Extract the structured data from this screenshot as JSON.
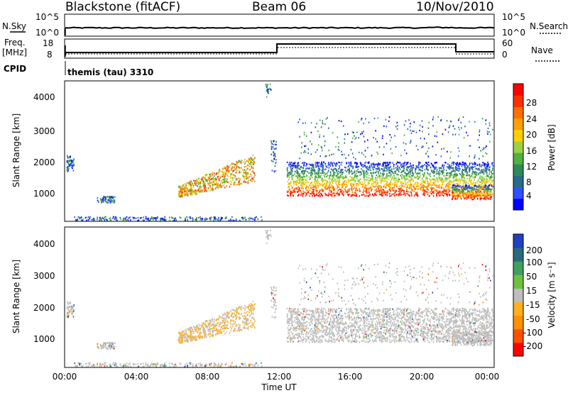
{
  "header": {
    "station": "Blackstone (fitACF)",
    "beam": "Beam 06",
    "date": "10/Nov/2010"
  },
  "status_panels": {
    "nsky_label": "N.Sky",
    "nsearch_label": "N.Search",
    "nsky_ticks": [
      "10^5",
      "10^0"
    ],
    "nsearch_ticks": [
      "10^5",
      "10^0"
    ],
    "freq_label": "Freq.",
    "freq_unit": "[MHz]",
    "freq_ticks": [
      "18",
      "8"
    ],
    "nave_label": "Nave",
    "nave_ticks": [
      "60",
      "0"
    ],
    "cpid_label": "CPID",
    "cpid_text": "themis (tau) 3310"
  },
  "x_axis": {
    "label": "Time UT",
    "ticks": [
      "00:00",
      "04:00",
      "08:00",
      "12:00",
      "16:00",
      "20:00",
      "00:00"
    ]
  },
  "power_panel": {
    "ylabel": "Slant Range [km]",
    "yticks": [
      "4000",
      "3000",
      "2000",
      "1000"
    ],
    "cbar_label": "Power [dB]",
    "cbar_ticks": [
      "28",
      "24",
      "20",
      "16",
      "12",
      "8",
      "4"
    ],
    "cbar_colors": [
      "#0000ff",
      "#3050ff",
      "#2a6a8a",
      "#2f8a5a",
      "#50b040",
      "#a0d040",
      "#ffd000",
      "#ffa000",
      "#ff7000",
      "#ff3000",
      "#ff0000"
    ]
  },
  "velocity_panel": {
    "ylabel": "Slant Range [km]",
    "yticks": [
      "4000",
      "3000",
      "2000",
      "1000"
    ],
    "cbar_label": "Velocity [m s⁻¹]",
    "cbar_ticks": [
      "200",
      "100",
      "50",
      "15",
      "-15",
      "-50",
      "-100",
      "-200"
    ],
    "cbar_colors": [
      "#ff0000",
      "#ff5000",
      "#ff9000",
      "#ffb020",
      "#bebebe",
      "#70c040",
      "#40a060",
      "#2a6a7a",
      "#2040c0"
    ]
  },
  "chart_data": {
    "type": "heatmap",
    "title": "Blackstone (fitACF)",
    "xlabel": "Time UT",
    "ylabel": "Slant Range [km]",
    "xlim": [
      0,
      24
    ],
    "ylim": [
      180,
      4500
    ],
    "series": [
      {
        "name": "Power [dB]",
        "range": [
          0,
          32
        ]
      },
      {
        "name": "Velocity [m s⁻¹]",
        "range": [
          -250,
          250
        ]
      }
    ]
  }
}
